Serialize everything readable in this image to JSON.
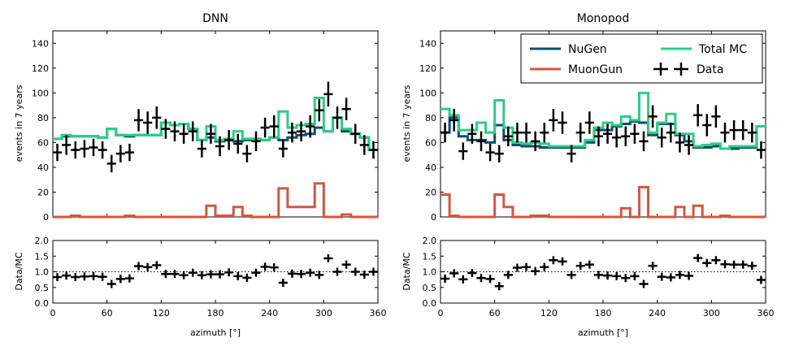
{
  "figure": {
    "xlabel": "azimuth [°]"
  },
  "legend": {
    "placement": "top-right of Monopod panel",
    "entries": [
      {
        "key": "nugen",
        "label": "NuGen"
      },
      {
        "key": "total",
        "label": "Total MC"
      },
      {
        "key": "muongun",
        "label": "MuonGun"
      },
      {
        "key": "data",
        "label": "Data"
      }
    ]
  },
  "chart_data": [
    {
      "type": "line",
      "panel": "DNN",
      "title": "DNN",
      "drawstyle": "steps-mid",
      "xlabel": "azimuth [°]",
      "ylabel": "events in 7 years",
      "xlim": [
        0,
        360
      ],
      "ylim": [
        0,
        150
      ],
      "xticks": [
        0,
        60,
        120,
        180,
        240,
        300,
        360
      ],
      "yticks": [
        0,
        20,
        40,
        60,
        80,
        100,
        120,
        140
      ],
      "colors": {
        "nugen": "#0b4f6c",
        "muongun": "#d0583f",
        "total": "#2ecc87",
        "data": "#000000"
      },
      "bin_width": 10,
      "x": [
        5,
        15,
        25,
        35,
        45,
        55,
        65,
        75,
        85,
        95,
        105,
        115,
        125,
        135,
        145,
        155,
        165,
        175,
        185,
        195,
        205,
        215,
        225,
        235,
        245,
        255,
        265,
        275,
        285,
        295,
        305,
        315,
        325,
        335,
        345,
        355
      ],
      "series": [
        {
          "name": "NuGen",
          "key": "nugen",
          "values": [
            63,
            65,
            65,
            65,
            65,
            64,
            71,
            66,
            65,
            66,
            66,
            66,
            76,
            74,
            75,
            71,
            62,
            64,
            61,
            62,
            61,
            62,
            63,
            62,
            64,
            62,
            64,
            66,
            67,
            72,
            69,
            80,
            69,
            67,
            64,
            54
          ]
        },
        {
          "name": "MuonGun",
          "key": "muongun",
          "values": [
            0,
            0,
            1,
            0,
            0,
            0,
            0,
            0,
            1,
            0,
            0,
            0,
            0,
            0,
            0,
            0,
            0,
            9,
            1,
            1,
            8,
            1,
            0,
            0,
            0,
            23,
            8,
            8,
            8,
            27,
            0,
            0,
            2,
            0,
            0,
            0
          ]
        },
        {
          "name": "Total MC",
          "key": "total",
          "values": [
            63,
            66,
            65,
            65,
            65,
            64,
            71,
            66,
            66,
            66,
            66,
            66,
            76,
            74,
            75,
            71,
            62,
            73,
            62,
            63,
            69,
            63,
            63,
            62,
            64,
            85,
            72,
            74,
            75,
            96,
            69,
            80,
            71,
            67,
            64,
            54
          ]
        },
        {
          "name": "Data",
          "key": "data",
          "kind": "errorbar",
          "values": [
            52,
            58,
            54,
            55,
            56,
            54,
            43,
            51,
            52,
            78,
            76,
            80,
            71,
            69,
            67,
            69,
            55,
            67,
            57,
            62,
            59,
            51,
            61,
            72,
            73,
            55,
            68,
            69,
            73,
            86,
            99,
            80,
            87,
            67,
            58,
            54
          ],
          "errors": [
            7,
            8,
            7,
            7,
            7,
            7,
            7,
            7,
            7,
            9,
            9,
            9,
            8,
            8,
            8,
            8,
            7,
            8,
            8,
            8,
            8,
            7,
            8,
            8,
            9,
            7,
            8,
            8,
            9,
            9,
            10,
            9,
            9,
            8,
            8,
            7
          ]
        }
      ]
    },
    {
      "type": "line",
      "panel": "DNN ratio",
      "drawstyle": "points",
      "xlabel": "azimuth [°]",
      "ylabel": "Data/MC",
      "xlim": [
        0,
        360
      ],
      "ylim": [
        0.0,
        2.0
      ],
      "xticks": [
        0,
        60,
        120,
        180,
        240,
        300,
        360
      ],
      "yticks": [
        0.0,
        0.5,
        1.0,
        1.5,
        2.0
      ],
      "ytick_labels": [
        "0.0",
        "0.5",
        "1.0",
        "1.5",
        "2.0"
      ],
      "reference_line": 1.0,
      "x": [
        5,
        15,
        25,
        35,
        45,
        55,
        65,
        75,
        85,
        95,
        105,
        115,
        125,
        135,
        145,
        155,
        165,
        175,
        185,
        195,
        205,
        215,
        225,
        235,
        245,
        255,
        265,
        275,
        285,
        295,
        305,
        315,
        325,
        335,
        345,
        355
      ],
      "series": [
        {
          "name": "Data/MC",
          "values": [
            0.83,
            0.88,
            0.83,
            0.85,
            0.86,
            0.84,
            0.61,
            0.77,
            0.79,
            1.18,
            1.15,
            1.21,
            0.93,
            0.93,
            0.89,
            0.97,
            0.89,
            0.92,
            0.92,
            0.98,
            0.86,
            0.81,
            0.97,
            1.16,
            1.14,
            0.65,
            0.94,
            0.93,
            0.97,
            0.9,
            1.43,
            1.0,
            1.23,
            1.0,
            0.91,
            1.0
          ]
        }
      ]
    },
    {
      "type": "line",
      "panel": "Monopod",
      "title": "Monopod",
      "drawstyle": "steps-mid",
      "xlabel": "azimuth [°]",
      "ylabel": "events in 7 years",
      "xlim": [
        0,
        360
      ],
      "ylim": [
        0,
        150
      ],
      "xticks": [
        0,
        60,
        120,
        180,
        240,
        300,
        360
      ],
      "yticks": [
        0,
        20,
        40,
        60,
        80,
        100,
        120,
        140
      ],
      "colors": {
        "nugen": "#0b4f6c",
        "muongun": "#d0583f",
        "total": "#2ecc87",
        "data": "#000000"
      },
      "bin_width": 10,
      "x": [
        5,
        15,
        25,
        35,
        45,
        55,
        65,
        75,
        85,
        95,
        105,
        115,
        125,
        135,
        145,
        155,
        165,
        175,
        185,
        195,
        205,
        215,
        225,
        235,
        245,
        255,
        265,
        275,
        285,
        295,
        305,
        315,
        325,
        335,
        345,
        355
      ],
      "series": [
        {
          "name": "NuGen",
          "key": "nugen",
          "values": [
            68,
            80,
            65,
            62,
            62,
            60,
            74,
            62,
            58,
            57,
            57,
            56,
            56,
            56,
            56,
            56,
            60,
            70,
            70,
            73,
            75,
            77,
            76,
            66,
            75,
            75,
            66,
            61,
            56,
            56,
            57,
            55,
            55,
            56,
            56,
            73
          ]
        },
        {
          "name": "MuonGun",
          "key": "muongun",
          "values": [
            18,
            1,
            0,
            0,
            0,
            0,
            18,
            8,
            0,
            0,
            1,
            1,
            0,
            0,
            0,
            0,
            0,
            0,
            0,
            0,
            7,
            0,
            24,
            0,
            0,
            0,
            8,
            0,
            9,
            0,
            0,
            1,
            0,
            0,
            0,
            0
          ]
        },
        {
          "name": "Total MC",
          "key": "total",
          "values": [
            87,
            82,
            70,
            70,
            76,
            68,
            94,
            72,
            60,
            59,
            60,
            59,
            57,
            57,
            57,
            57,
            62,
            72,
            76,
            74,
            81,
            78,
            100,
            68,
            76,
            83,
            67,
            67,
            57,
            58,
            59,
            55,
            57,
            57,
            57,
            73
          ]
        },
        {
          "name": "Data",
          "key": "data",
          "kind": "errorbar",
          "values": [
            68,
            78,
            53,
            67,
            61,
            52,
            51,
            65,
            68,
            68,
            61,
            68,
            78,
            76,
            51,
            68,
            76,
            65,
            67,
            64,
            65,
            67,
            61,
            81,
            64,
            68,
            60,
            58,
            82,
            74,
            81,
            68,
            70,
            70,
            68,
            54
          ],
          "errors": [
            8,
            9,
            7,
            8,
            8,
            7,
            7,
            8,
            8,
            8,
            8,
            8,
            9,
            9,
            7,
            8,
            9,
            8,
            8,
            8,
            8,
            8,
            8,
            9,
            8,
            8,
            8,
            8,
            9,
            9,
            9,
            8,
            8,
            8,
            8,
            7
          ]
        }
      ]
    },
    {
      "type": "line",
      "panel": "Monopod ratio",
      "drawstyle": "points",
      "xlabel": "azimuth [°]",
      "ylabel": "Data/MC",
      "xlim": [
        0,
        360
      ],
      "ylim": [
        0.0,
        2.0
      ],
      "xticks": [
        0,
        60,
        120,
        180,
        240,
        300,
        360
      ],
      "yticks": [
        0.0,
        0.5,
        1.0,
        1.5,
        2.0
      ],
      "ytick_labels": [
        "0.0",
        "0.5",
        "1.0",
        "1.5",
        "2.0"
      ],
      "reference_line": 1.0,
      "x": [
        5,
        15,
        25,
        35,
        45,
        55,
        65,
        75,
        85,
        95,
        105,
        115,
        125,
        135,
        145,
        155,
        165,
        175,
        185,
        195,
        205,
        215,
        225,
        235,
        245,
        255,
        265,
        275,
        285,
        295,
        305,
        315,
        325,
        335,
        345,
        355
      ],
      "series": [
        {
          "name": "Data/MC",
          "values": [
            0.78,
            0.95,
            0.76,
            0.96,
            0.8,
            0.77,
            0.54,
            0.9,
            1.13,
            1.15,
            1.02,
            1.15,
            1.37,
            1.33,
            0.9,
            1.19,
            1.23,
            0.9,
            0.88,
            0.86,
            0.8,
            0.86,
            0.61,
            1.19,
            0.84,
            0.82,
            0.9,
            0.87,
            1.44,
            1.28,
            1.37,
            1.24,
            1.23,
            1.23,
            1.19,
            0.74
          ]
        }
      ]
    }
  ]
}
